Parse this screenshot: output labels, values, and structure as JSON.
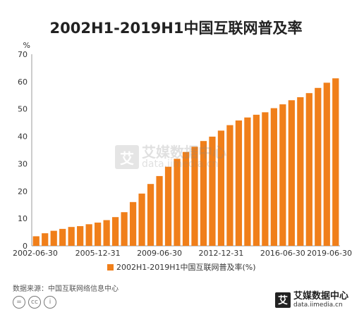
{
  "chart_data": {
    "type": "bar",
    "title": "2002H1-2019H1中国互联网普及率",
    "ylabel": "%",
    "ylim": [
      0,
      70
    ],
    "yticks": [
      0,
      10,
      20,
      30,
      40,
      50,
      60,
      70
    ],
    "xtick_labels": [
      "2002-06-30",
      "2005-12-31",
      "2009-06-30",
      "2012-12-31",
      "2016-06-30",
      "2019-06-30"
    ],
    "xtick_indices": [
      0,
      7,
      14,
      21,
      28,
      34
    ],
    "values": [
      3.5,
      4.6,
      5.5,
      6.2,
      6.9,
      7.2,
      7.9,
      8.5,
      9.4,
      10.5,
      12.3,
      16.0,
      19.1,
      22.6,
      25.5,
      28.9,
      31.8,
      34.3,
      36.2,
      38.3,
      39.9,
      42.1,
      44.1,
      45.8,
      46.9,
      47.9,
      48.8,
      50.3,
      51.7,
      53.2,
      54.3,
      55.8,
      57.7,
      59.6,
      61.2
    ],
    "legend": "2002H1-2019H1中国互联网普及率(%)",
    "bar_color": "#f07f1a",
    "grid": false
  },
  "source": "数据来源：中国互联网络信息中心",
  "watermark": {
    "logo": "艾",
    "name": "艾媒数据中心",
    "url": "data.iimedia.cn"
  },
  "brand": {
    "logo": "艾",
    "name": "艾媒数据中心",
    "url": "data.iimedia.cn"
  },
  "license_icons": [
    "=",
    "cc",
    "i"
  ]
}
